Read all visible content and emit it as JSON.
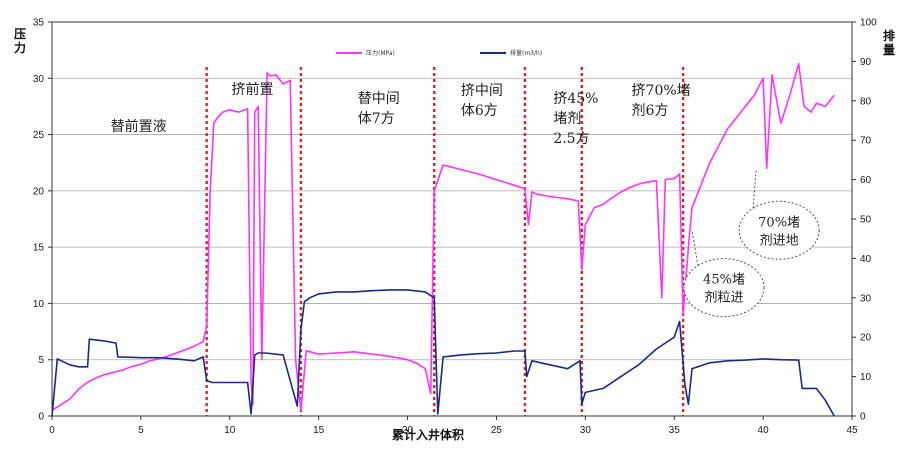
{
  "chart_data": {
    "type": "line",
    "xlabel": "累计入井体积",
    "ylabel_left": "压力",
    "ylabel_right": "排量",
    "xlim": [
      0,
      45
    ],
    "ylim_left": [
      0,
      35
    ],
    "ylim_right": [
      0,
      100
    ],
    "xticks": [
      "0",
      "5",
      "10",
      "15",
      "20",
      "25",
      "30",
      "35",
      "40",
      "45"
    ],
    "yticks_left": [
      "0",
      "5",
      "10",
      "15",
      "20",
      "25",
      "30",
      "35"
    ],
    "yticks_right": [
      "0",
      "10",
      "20",
      "30",
      "40",
      "50",
      "60",
      "70",
      "80",
      "90",
      "100"
    ],
    "grid": "horizontal",
    "legend_position": "top",
    "colors": {
      "pressure": "#ff33ff",
      "rate": "#1a2a8c",
      "divider": "#e8201c",
      "grid": "#aaaaaa"
    },
    "series": [
      {
        "name": "压力(MPa)",
        "axis": "left",
        "x": [
          0,
          0.5,
          1,
          1.5,
          2,
          2.5,
          3,
          3.5,
          4,
          4.5,
          5,
          5.5,
          6,
          6.5,
          7,
          7.5,
          8,
          8.5,
          8.7,
          8.9,
          9.1,
          9.3,
          9.6,
          10,
          10.5,
          11,
          11.2,
          11.3,
          11.4,
          11.6,
          11.8,
          12.1,
          12.3,
          12.6,
          13,
          13.4,
          13.7,
          14,
          14.3,
          15,
          16,
          17,
          18,
          19,
          20,
          20.5,
          21,
          21.3,
          21.5,
          22,
          22.5,
          23,
          24,
          25,
          26,
          26.6,
          26.8,
          27,
          27.3,
          28,
          29,
          29.6,
          29.8,
          30,
          30.5,
          31,
          31.5,
          32,
          32.5,
          33,
          33.5,
          34,
          34.3,
          34.5,
          35,
          35.3,
          35.5,
          35.8,
          36,
          36.5,
          37,
          37.5,
          38,
          38.5,
          39,
          39.5,
          40,
          40.2,
          40.5,
          41,
          41.5,
          42,
          42.3,
          42.7,
          43,
          43.5,
          44
        ],
        "y": [
          0.5,
          1,
          1.5,
          2.4,
          3,
          3.4,
          3.7,
          3.9,
          4.1,
          4.4,
          4.6,
          4.9,
          5.1,
          5.3,
          5.6,
          5.9,
          6.2,
          6.6,
          8,
          20,
          26,
          26.5,
          27,
          27.2,
          27,
          27.3,
          3,
          1,
          27,
          27.5,
          5,
          30.5,
          30.2,
          30.3,
          29.5,
          29.8,
          5,
          0.5,
          5.8,
          5.5,
          5.6,
          5.7,
          5.5,
          5.3,
          5,
          4.7,
          4.2,
          2,
          20,
          22.3,
          22.1,
          21.9,
          21.5,
          21,
          20.5,
          20.2,
          17,
          19.9,
          19.7,
          19.5,
          19.3,
          19.1,
          13,
          17,
          18.5,
          18.8,
          19.4,
          19.9,
          20.3,
          20.6,
          20.8,
          20.9,
          10.5,
          21,
          21.1,
          21.5,
          9,
          15,
          18.5,
          20.5,
          22.5,
          24,
          25.5,
          26.5,
          27.5,
          28.5,
          30,
          22,
          30.3,
          26,
          28.5,
          31.3,
          27.5,
          27,
          27.8,
          27.5,
          28.5
        ]
      },
      {
        "name": "排量(m3/h)",
        "axis": "right",
        "x": [
          0,
          0.3,
          1,
          1.5,
          2,
          2.1,
          3,
          3.6,
          3.7,
          5,
          6,
          7,
          8,
          8.5,
          8.7,
          9,
          10,
          11,
          11.2,
          11.4,
          11.6,
          12,
          13,
          13.8,
          14,
          14.2,
          14.5,
          15,
          16,
          17,
          18,
          19,
          20,
          21,
          21.5,
          21.7,
          22,
          23,
          24,
          25,
          26,
          26.6,
          26.7,
          27,
          28,
          29,
          29.7,
          29.8,
          30,
          31,
          32,
          33,
          34,
          35,
          35.3,
          35.6,
          35.8,
          36,
          37,
          38,
          39,
          40,
          41,
          42,
          42.2,
          43,
          43.5,
          44
        ],
        "y": [
          0,
          14.5,
          13,
          12.5,
          12.5,
          19.5,
          19,
          18.5,
          15,
          14.8,
          14.8,
          14.5,
          14,
          15,
          9,
          8.5,
          8.5,
          8.5,
          0.5,
          15.5,
          16,
          16,
          15.5,
          2.5,
          22,
          29,
          30,
          31,
          31.5,
          31.5,
          31.8,
          32,
          32,
          31.5,
          30,
          0.5,
          15,
          15.5,
          15.8,
          16,
          16.5,
          16.5,
          10,
          14,
          13,
          12,
          14,
          3,
          6,
          7,
          10,
          13,
          17,
          20,
          24,
          8,
          3,
          12,
          13.5,
          14,
          14.2,
          14.5,
          14.3,
          14.2,
          7,
          7,
          4,
          0
        ]
      }
    ],
    "dividers_x": [
      8.7,
      14.0,
      21.5,
      26.6,
      29.8,
      35.5
    ],
    "stage_labels": [
      {
        "lines": [
          "替前置液"
        ],
        "x": 3.3,
        "y": 25.3
      },
      {
        "lines": [
          "挤前置"
        ],
        "x": 10.1,
        "y": 28.6
      },
      {
        "lines": [
          "替中间",
          "体7方"
        ],
        "x": 17.2,
        "y": 27.8
      },
      {
        "lines": [
          "挤中间",
          "体6方"
        ],
        "x": 23.0,
        "y": 28.5
      },
      {
        "lines": [
          "挤45%",
          "堵剂",
          "2.5方"
        ],
        "x": 28.2,
        "y": 27.8
      },
      {
        "lines": [
          "挤70%堵",
          "剂6方"
        ],
        "x": 32.6,
        "y": 28.5
      }
    ],
    "annotations": [
      {
        "lines": [
          "70%堵",
          "剂进地"
        ],
        "cx": 40.9,
        "cy": 16.5,
        "arrow_to": [
          39.6,
          21.8
        ]
      },
      {
        "lines": [
          "45%堵",
          "剂粒进"
        ],
        "cx": 37.8,
        "cy": 11.4,
        "arrow_to": [
          36.0,
          16.5
        ]
      }
    ]
  }
}
